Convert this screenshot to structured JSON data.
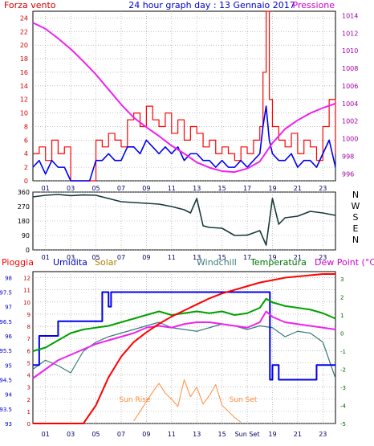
{
  "header": {
    "left_title": "Forza vento",
    "center_title": "24 hour graph day : 13 Gennaio 2017",
    "right_title": "Pressione"
  },
  "compass": [
    "N",
    "W",
    "S",
    "E",
    "N"
  ],
  "legend": {
    "pioggia": "Pioggia",
    "umidita": "Umidita",
    "solar": "Solar",
    "windchill": "Windchill",
    "temperatura": "Temperatura",
    "dewpoint": "Dew Point (°C)"
  },
  "annotations": {
    "sun_rise": "Sun Rise",
    "sun_set": "Sun Set"
  },
  "colors": {
    "wind": "#ff0000",
    "wind_avg": "#0000ee",
    "pressure": "#ee22ee",
    "direction": "#1a3a3a",
    "rain": "#ff0000",
    "humidity": "#0000ee",
    "solar": "#ff8c3a",
    "windchill": "#3a7a7a",
    "temperature": "#00a000",
    "dewpoint": "#ee22ee",
    "left_axis": "#d00000",
    "right_axis": "#a000a0",
    "humidity_axis": "#0000cc",
    "temp_axis": "#006600"
  },
  "chart_data": [
    {
      "type": "line",
      "title": "24 hour graph day : 13 Gennaio 2017",
      "x_ticks": [
        "01",
        "03",
        "05",
        "07",
        "09",
        "11",
        "13",
        "15",
        "17",
        "19",
        "21",
        "23"
      ],
      "y_left": {
        "label": "Forza vento",
        "ticks": [
          0,
          2,
          4,
          6,
          8,
          10,
          12,
          14,
          16,
          18,
          20,
          22,
          24
        ],
        "range": [
          0,
          25
        ]
      },
      "y_right": {
        "label": "Pressione",
        "ticks": [
          996,
          998,
          1000,
          1002,
          1004,
          1006,
          1008,
          1010,
          1012,
          1014
        ],
        "range": [
          995.2,
          1014.5
        ]
      },
      "series": [
        {
          "key": "gust",
          "x": [
            0,
            0.5,
            1,
            1.5,
            2,
            2.5,
            3,
            3.5,
            4,
            4.5,
            5,
            5.5,
            6,
            6.5,
            7,
            7.5,
            8,
            8.5,
            9,
            9.5,
            10,
            10.5,
            11,
            11.5,
            12,
            12.5,
            13,
            13.5,
            14,
            14.5,
            15,
            15.5,
            16,
            16.5,
            17,
            17.5,
            18,
            18.25,
            18.5,
            18.75,
            19,
            19.5,
            20,
            20.5,
            21,
            21.5,
            22,
            22.5,
            23,
            23.5,
            24
          ],
          "values": [
            4,
            5,
            3,
            6,
            4,
            5,
            0,
            0,
            0,
            0,
            6,
            5,
            7,
            6,
            5,
            9,
            10,
            8,
            11,
            9,
            8,
            10,
            7,
            9,
            6,
            8,
            7,
            5,
            6,
            4,
            5,
            4,
            3,
            5,
            4,
            6,
            8,
            16,
            25,
            12,
            8,
            6,
            5,
            7,
            4,
            6,
            5,
            3,
            8,
            12,
            4
          ]
        },
        {
          "key": "average",
          "x": [
            0,
            0.5,
            1,
            1.5,
            2,
            2.5,
            3,
            3.5,
            4,
            4.5,
            5,
            5.5,
            6,
            6.5,
            7,
            7.5,
            8,
            8.5,
            9,
            9.5,
            10,
            10.5,
            11,
            11.5,
            12,
            12.5,
            13,
            13.5,
            14,
            14.5,
            15,
            15.5,
            16,
            16.5,
            17,
            17.5,
            18,
            18.25,
            18.5,
            18.75,
            19,
            19.5,
            20,
            20.5,
            21,
            21.5,
            22,
            22.5,
            23,
            23.5,
            24
          ],
          "values": [
            2,
            3,
            1,
            3,
            2,
            2,
            0,
            0,
            0,
            0,
            3,
            3,
            4,
            3,
            3,
            5,
            5,
            4,
            6,
            5,
            4,
            5,
            4,
            5,
            3,
            4,
            4,
            3,
            3,
            2,
            3,
            2,
            2,
            3,
            2,
            3,
            4,
            8,
            11,
            6,
            4,
            3,
            3,
            4,
            2,
            3,
            3,
            2,
            4,
            6,
            2
          ]
        },
        {
          "key": "pressure",
          "axis": "right",
          "x": [
            0,
            1,
            2,
            3,
            4,
            5,
            6,
            7,
            8,
            9,
            10,
            11,
            12,
            13,
            14,
            15,
            16,
            17,
            18,
            19,
            20,
            21,
            22,
            23,
            24
          ],
          "values": [
            1013.2,
            1012.5,
            1011.4,
            1010.2,
            1008.8,
            1007.3,
            1005.6,
            1003.9,
            1002.4,
            1001.3,
            1000.3,
            999.2,
            998.3,
            997.3,
            996.7,
            996.3,
            996.2,
            996.6,
            997.4,
            999.5,
            1001.1,
            1002.1,
            1002.9,
            1003.5,
            1004.0
          ]
        }
      ]
    },
    {
      "type": "line",
      "x_ticks": [
        "01",
        "03",
        "05",
        "07",
        "09",
        "11",
        "13",
        "15",
        "17",
        "19",
        "21",
        "23"
      ],
      "y_left": {
        "ticks": [
          0,
          90,
          180,
          270,
          360
        ],
        "range": [
          0,
          360
        ]
      },
      "series": [
        {
          "key": "direction",
          "x": [
            0,
            1,
            2,
            3,
            4,
            5,
            6,
            7,
            8,
            9,
            10,
            11,
            12,
            12.5,
            13,
            13.5,
            14,
            15,
            16,
            17,
            18,
            18.5,
            19,
            19.5,
            20,
            21,
            22,
            23,
            24
          ],
          "values": [
            330,
            340,
            345,
            338,
            342,
            340,
            320,
            300,
            295,
            290,
            285,
            270,
            250,
            230,
            320,
            150,
            140,
            135,
            90,
            92,
            120,
            30,
            320,
            160,
            200,
            210,
            240,
            230,
            215
          ]
        }
      ]
    },
    {
      "type": "line",
      "x_ticks": [
        "01",
        "03",
        "05",
        "07",
        "09",
        "11",
        "13",
        "15",
        "Sun Set",
        "19",
        "21",
        "23"
      ],
      "y_far_left": {
        "label": "Umidita",
        "ticks": [
          93,
          93.5,
          94,
          94.5,
          95,
          95.5,
          96,
          96.5,
          97,
          97.5,
          98
        ],
        "range": [
          93,
          98.2
        ]
      },
      "y_left": {
        "label": "Pioggia",
        "ticks": [
          0,
          1,
          2,
          3,
          4,
          5,
          6,
          7,
          8,
          9,
          10,
          11,
          12
        ],
        "range": [
          0,
          12.5
        ]
      },
      "y_right": {
        "label": "Dew Point (°C)",
        "ticks": [
          -5,
          -4,
          -3,
          -2,
          -1,
          0,
          1,
          2,
          3
        ],
        "range": [
          -5,
          3.4
        ]
      },
      "series": [
        {
          "key": "rain",
          "axis": "left",
          "x": [
            0,
            3,
            4,
            5,
            6,
            7,
            8,
            9,
            10,
            11,
            12,
            13,
            14,
            15,
            16,
            17,
            18,
            19,
            20,
            21,
            22,
            23,
            24
          ],
          "values": [
            0,
            0,
            0,
            1.5,
            3.8,
            5.5,
            6.7,
            7.5,
            8.2,
            8.8,
            9.3,
            9.8,
            10.3,
            10.7,
            11.0,
            11.3,
            11.6,
            11.8,
            12.0,
            12.1,
            12.2,
            12.3,
            12.3
          ]
        },
        {
          "key": "humidity",
          "axis": "far_left",
          "x": [
            0,
            0.5,
            1.5,
            2,
            3.8,
            4.5,
            5.5,
            6,
            6.2,
            6.5,
            18.5,
            18.8,
            19,
            19.2,
            19.5,
            21,
            22,
            22.5,
            24
          ],
          "values": [
            95,
            96,
            96,
            96.5,
            96.5,
            96.5,
            97.5,
            97,
            97.5,
            97.5,
            97.5,
            94.5,
            95,
            95,
            94.5,
            94.5,
            94.5,
            95,
            95
          ]
        },
        {
          "key": "solar",
          "axis": "left",
          "x": [
            8,
            8.5,
            9,
            9.5,
            10,
            10.5,
            11,
            11.5,
            12,
            12.5,
            13,
            13.5,
            14,
            14.5,
            15,
            15.5,
            16,
            16.5
          ],
          "values": [
            0.2,
            1.0,
            1.8,
            2.6,
            3.3,
            2.5,
            2.0,
            1.4,
            3.6,
            2.2,
            3.0,
            1.6,
            2.3,
            3.2,
            1.5,
            1.0,
            0.5,
            0.1
          ]
        },
        {
          "key": "windchill",
          "axis": "right",
          "x": [
            0,
            1,
            2,
            3,
            4,
            5,
            6,
            7,
            8,
            9,
            10,
            11,
            12,
            13,
            14,
            15,
            16,
            17,
            18,
            19,
            20,
            21,
            22,
            23,
            24
          ],
          "values": [
            -2,
            -1.5,
            -1.8,
            -2.2,
            -1.0,
            -0.5,
            -0.2,
            0.0,
            0.2,
            0.4,
            0.6,
            0.3,
            0.2,
            0.1,
            0.3,
            0.5,
            0.4,
            0.2,
            0.4,
            0.3,
            -0.2,
            0.1,
            0.0,
            -0.5,
            -2.5
          ]
        },
        {
          "key": "temperature",
          "axis": "right",
          "x": [
            0,
            1,
            2,
            3,
            4,
            5,
            6,
            7,
            8,
            9,
            10,
            11,
            12,
            13,
            14,
            15,
            16,
            17,
            18,
            18.5,
            19,
            20,
            21,
            22,
            23,
            24
          ],
          "values": [
            -1.0,
            -0.8,
            -0.4,
            0.0,
            0.2,
            0.3,
            0.4,
            0.6,
            0.8,
            1.0,
            1.2,
            1.0,
            1.1,
            1.2,
            1.1,
            1.2,
            1.0,
            1.1,
            1.4,
            1.9,
            1.7,
            1.5,
            1.4,
            1.3,
            1.1,
            0.8
          ]
        },
        {
          "key": "dewpoint",
          "axis": "right",
          "x": [
            0,
            1,
            2,
            3,
            4,
            5,
            6,
            7,
            8,
            9,
            10,
            11,
            12,
            13,
            14,
            15,
            16,
            17,
            18,
            18.5,
            19,
            20,
            21,
            22,
            23,
            24
          ],
          "values": [
            -2.5,
            -2.0,
            -1.5,
            -1.2,
            -0.9,
            -0.6,
            -0.4,
            -0.2,
            0.0,
            0.3,
            0.4,
            0.3,
            0.5,
            0.6,
            0.6,
            0.5,
            0.4,
            0.3,
            0.6,
            1.2,
            0.9,
            0.6,
            0.5,
            0.4,
            0.3,
            0.2
          ]
        }
      ]
    }
  ]
}
